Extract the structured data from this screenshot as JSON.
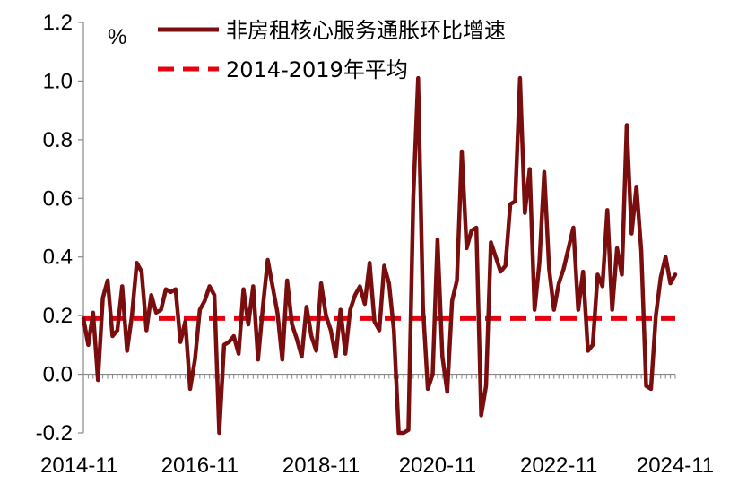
{
  "chart_data": {
    "type": "line",
    "unit": "%",
    "ylim": [
      -0.2,
      1.2
    ],
    "y_ticks": [
      "-0.2",
      "0.0",
      "0.2",
      "0.4",
      "0.6",
      "0.8",
      "1.0",
      "1.2"
    ],
    "x_ticks": [
      "2014-11",
      "2016-11",
      "2018-11",
      "2020-11",
      "2022-11",
      "2024-11"
    ],
    "x_start": "2014-11",
    "x_end": "2024-11",
    "grid": false,
    "legend_position": "top-center",
    "series": [
      {
        "name": "非房租核心服务通胀环比增速",
        "color": "#7a0d0d",
        "style": "solid",
        "values": [
          0.19,
          0.1,
          0.21,
          -0.02,
          0.26,
          0.32,
          0.13,
          0.15,
          0.3,
          0.08,
          0.2,
          0.38,
          0.35,
          0.15,
          0.27,
          0.21,
          0.22,
          0.29,
          0.28,
          0.29,
          0.11,
          0.18,
          -0.05,
          0.05,
          0.22,
          0.25,
          0.3,
          0.27,
          -0.2,
          0.1,
          0.11,
          0.13,
          0.07,
          0.29,
          0.17,
          0.3,
          0.05,
          0.23,
          0.39,
          0.3,
          0.21,
          0.05,
          0.32,
          0.17,
          0.12,
          0.06,
          0.23,
          0.13,
          0.08,
          0.31,
          0.2,
          0.15,
          0.06,
          0.22,
          0.07,
          0.22,
          0.27,
          0.3,
          0.24,
          0.38,
          0.18,
          0.15,
          0.37,
          0.31,
          0.15,
          -0.2,
          -0.2,
          -0.19,
          0.6,
          1.01,
          0.23,
          -0.05,
          0.0,
          0.46,
          0.06,
          -0.06,
          0.25,
          0.32,
          0.76,
          0.43,
          0.49,
          0.5,
          -0.14,
          -0.04,
          0.45,
          0.4,
          0.35,
          0.37,
          0.58,
          0.59,
          1.01,
          0.55,
          0.7,
          0.22,
          0.38,
          0.69,
          0.36,
          0.22,
          0.31,
          0.36,
          0.43,
          0.5,
          0.22,
          0.35,
          0.08,
          0.1,
          0.34,
          0.3,
          0.56,
          0.22,
          0.43,
          0.34,
          0.85,
          0.48,
          0.64,
          0.42,
          -0.04,
          -0.05,
          0.2,
          0.33,
          0.4,
          0.31,
          0.34
        ]
      },
      {
        "name": "2014-2019年平均",
        "color": "#e8000f",
        "style": "dashed",
        "values": [
          0.19
        ]
      }
    ]
  }
}
